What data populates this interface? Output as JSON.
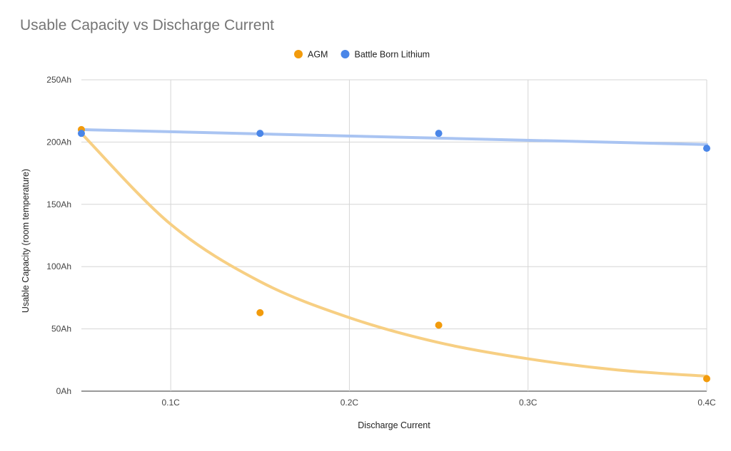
{
  "chart_data": {
    "type": "scatter",
    "title": "Usable Capacity vs Discharge Current",
    "xlabel": "Discharge Current",
    "ylabel": "Usable Capacity (room temperature)",
    "xlim": [
      0.05,
      0.4
    ],
    "ylim": [
      0,
      250
    ],
    "x_ticks": [
      {
        "value": 0.1,
        "label": "0.1C"
      },
      {
        "value": 0.2,
        "label": "0.2C"
      },
      {
        "value": 0.3,
        "label": "0.3C"
      },
      {
        "value": 0.4,
        "label": "0.4C"
      }
    ],
    "y_ticks": [
      {
        "value": 0,
        "label": "0Ah"
      },
      {
        "value": 50,
        "label": "50Ah"
      },
      {
        "value": 100,
        "label": "100Ah"
      },
      {
        "value": 150,
        "label": "150Ah"
      },
      {
        "value": 200,
        "label": "200Ah"
      },
      {
        "value": 250,
        "label": "250Ah"
      }
    ],
    "grid": true,
    "legend_position": "top",
    "series": [
      {
        "name": "AGM",
        "color": "#f29b0c",
        "trend_color": "#f7cf83",
        "trendline": "exponential",
        "points": [
          {
            "x": 0.05,
            "y": 210
          },
          {
            "x": 0.15,
            "y": 63
          },
          {
            "x": 0.25,
            "y": 53
          },
          {
            "x": 0.4,
            "y": 10
          }
        ],
        "trend_points": [
          {
            "x": 0.05,
            "y": 207
          },
          {
            "x": 0.1,
            "y": 134
          },
          {
            "x": 0.15,
            "y": 88
          },
          {
            "x": 0.2,
            "y": 59
          },
          {
            "x": 0.25,
            "y": 39
          },
          {
            "x": 0.3,
            "y": 26
          },
          {
            "x": 0.35,
            "y": 17
          },
          {
            "x": 0.4,
            "y": 12
          }
        ]
      },
      {
        "name": "Battle Born Lithium",
        "color": "#4a86e8",
        "trend_color": "#a9c4f2",
        "trendline": "linear",
        "points": [
          {
            "x": 0.05,
            "y": 207
          },
          {
            "x": 0.15,
            "y": 207
          },
          {
            "x": 0.25,
            "y": 207
          },
          {
            "x": 0.4,
            "y": 195
          }
        ],
        "trend_points": [
          {
            "x": 0.05,
            "y": 210
          },
          {
            "x": 0.4,
            "y": 198
          }
        ]
      }
    ]
  }
}
